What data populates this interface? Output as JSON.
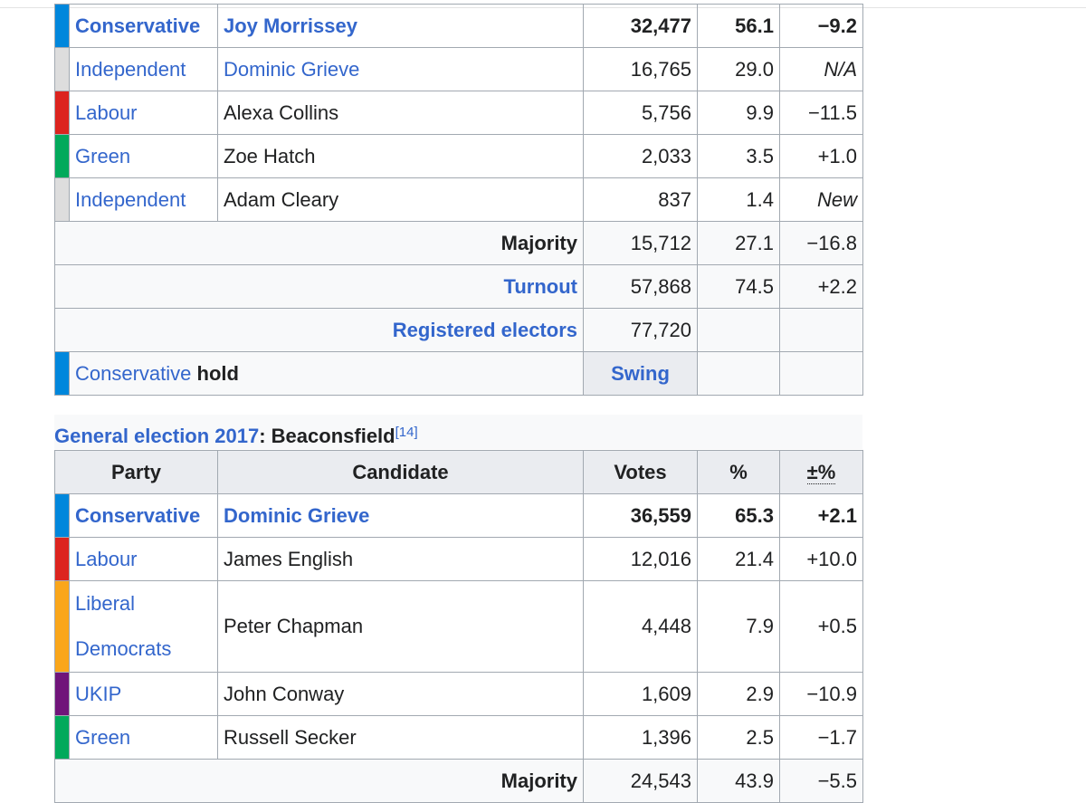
{
  "colors": {
    "conservative": "#0087dc",
    "independent": "#dddddd",
    "labour": "#dc241f",
    "green": "#02a95b",
    "libdem": "#faa61a",
    "ukip": "#70147a",
    "link": "#3366cc"
  },
  "election2019": {
    "rows": [
      {
        "party": "Conservative",
        "candidate": "Joy Morrissey",
        "votes": "32,477",
        "pct": "56.1",
        "change": "−9.2"
      },
      {
        "party": "Independent",
        "candidate": "Dominic Grieve",
        "votes": "16,765",
        "pct": "29.0",
        "change": "N/A"
      },
      {
        "party": "Labour",
        "candidate": "Alexa Collins",
        "votes": "5,756",
        "pct": "9.9",
        "change": "−11.5"
      },
      {
        "party": "Green",
        "candidate": "Zoe Hatch",
        "votes": "2,033",
        "pct": "3.5",
        "change": "+1.0"
      },
      {
        "party": "Independent",
        "candidate": "Adam Cleary",
        "votes": "837",
        "pct": "1.4",
        "change": "New"
      }
    ],
    "majority": {
      "label": "Majority",
      "votes": "15,712",
      "pct": "27.1",
      "change": "−16.8"
    },
    "turnout": {
      "label": "Turnout",
      "votes": "57,868",
      "pct": "74.5",
      "change": "+2.2"
    },
    "registered": {
      "label": "Registered electors",
      "votes": "77,720"
    },
    "hold": {
      "party": "Conservative",
      "word": "hold",
      "swing": "Swing"
    }
  },
  "election2017": {
    "caption_link": "General election 2017",
    "caption_rest": ": Beaconsfield",
    "caption_ref": "[14]",
    "headers": {
      "party": "Party",
      "candidate": "Candidate",
      "votes": "Votes",
      "pct": "%",
      "change": "±%"
    },
    "rows": [
      {
        "party": "Conservative",
        "candidate": "Dominic Grieve",
        "votes": "36,559",
        "pct": "65.3",
        "change": "+2.1"
      },
      {
        "party": "Labour",
        "candidate": "James English",
        "votes": "12,016",
        "pct": "21.4",
        "change": "+10.0"
      },
      {
        "party": "Liberal Democrats",
        "candidate": "Peter Chapman",
        "votes": "4,448",
        "pct": "7.9",
        "change": "+0.5"
      },
      {
        "party": "UKIP",
        "candidate": "John Conway",
        "votes": "1,609",
        "pct": "2.9",
        "change": "−10.9"
      },
      {
        "party": "Green",
        "candidate": "Russell Secker",
        "votes": "1,396",
        "pct": "2.5",
        "change": "−1.7"
      }
    ],
    "majority": {
      "label": "Majority",
      "votes": "24,543",
      "pct": "43.9",
      "change": "−5.5"
    }
  }
}
